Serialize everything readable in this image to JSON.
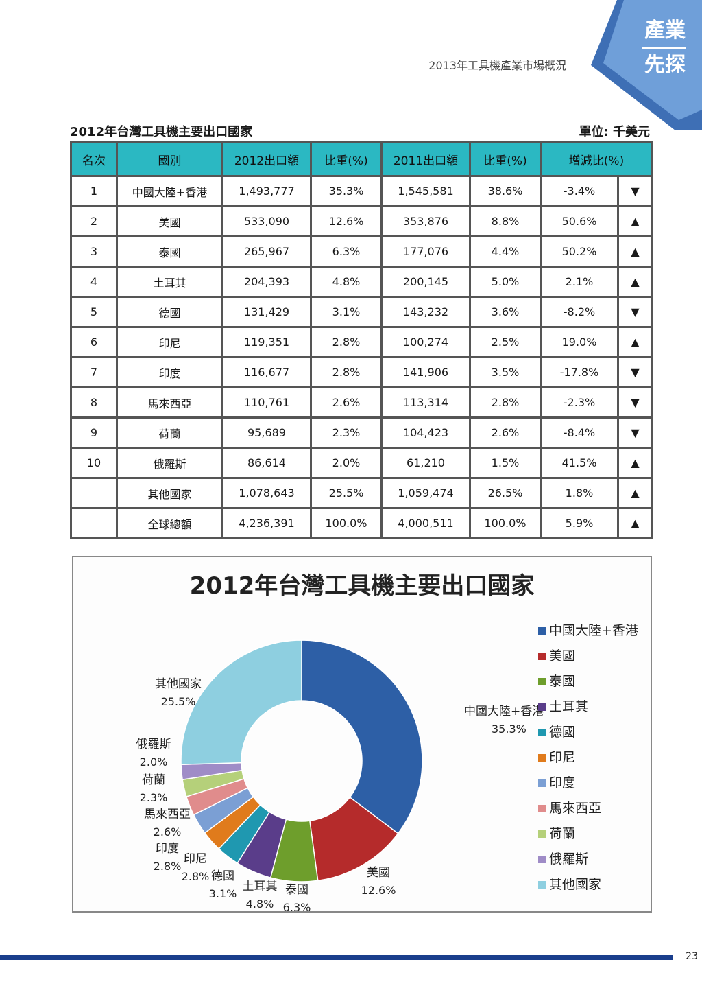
{
  "header": {
    "badge_top": "產業",
    "badge_bottom": "先探",
    "subtitle": "2013年工具機產業市場概況"
  },
  "table": {
    "title": "2012年台灣工具機主要出口國家",
    "unit": "單位: 千美元",
    "columns": [
      "名次",
      "國別",
      "2012出口額",
      "比重(%)",
      "2011出口額",
      "比重(%)",
      "增減比(%)"
    ],
    "rows": [
      {
        "rank": "1",
        "country": "中國大陸+香港",
        "v2012": "1,493,777",
        "s2012": "35.3%",
        "v2011": "1,545,581",
        "s2011": "38.6%",
        "change": "-3.4%",
        "trend": "▼"
      },
      {
        "rank": "2",
        "country": "美國",
        "v2012": "533,090",
        "s2012": "12.6%",
        "v2011": "353,876",
        "s2011": "8.8%",
        "change": "50.6%",
        "trend": "▲"
      },
      {
        "rank": "3",
        "country": "泰國",
        "v2012": "265,967",
        "s2012": "6.3%",
        "v2011": "177,076",
        "s2011": "4.4%",
        "change": "50.2%",
        "trend": "▲"
      },
      {
        "rank": "4",
        "country": "土耳其",
        "v2012": "204,393",
        "s2012": "4.8%",
        "v2011": "200,145",
        "s2011": "5.0%",
        "change": "2.1%",
        "trend": "▲"
      },
      {
        "rank": "5",
        "country": "德國",
        "v2012": "131,429",
        "s2012": "3.1%",
        "v2011": "143,232",
        "s2011": "3.6%",
        "change": "-8.2%",
        "trend": "▼"
      },
      {
        "rank": "6",
        "country": "印尼",
        "v2012": "119,351",
        "s2012": "2.8%",
        "v2011": "100,274",
        "s2011": "2.5%",
        "change": "19.0%",
        "trend": "▲"
      },
      {
        "rank": "7",
        "country": "印度",
        "v2012": "116,677",
        "s2012": "2.8%",
        "v2011": "141,906",
        "s2011": "3.5%",
        "change": "-17.8%",
        "trend": "▼"
      },
      {
        "rank": "8",
        "country": "馬來西亞",
        "v2012": "110,761",
        "s2012": "2.6%",
        "v2011": "113,314",
        "s2011": "2.8%",
        "change": "-2.3%",
        "trend": "▼"
      },
      {
        "rank": "9",
        "country": "荷蘭",
        "v2012": "95,689",
        "s2012": "2.3%",
        "v2011": "104,423",
        "s2011": "2.6%",
        "change": "-8.4%",
        "trend": "▼"
      },
      {
        "rank": "10",
        "country": "俄羅斯",
        "v2012": "86,614",
        "s2012": "2.0%",
        "v2011": "61,210",
        "s2011": "1.5%",
        "change": "41.5%",
        "trend": "▲"
      },
      {
        "rank": "",
        "country": "其他國家",
        "v2012": "1,078,643",
        "s2012": "25.5%",
        "v2011": "1,059,474",
        "s2011": "26.5%",
        "change": "1.8%",
        "trend": "▲"
      },
      {
        "rank": "",
        "country": "全球總額",
        "v2012": "4,236,391",
        "s2012": "100.0%",
        "v2011": "4,000,511",
        "s2011": "100.0%",
        "change": "5.9%",
        "trend": "▲"
      }
    ]
  },
  "chart_data": {
    "type": "pie",
    "variant": "doughnut",
    "title": "2012年台灣工具機主要出口國家",
    "legend_position": "right",
    "categories": [
      "中國大陸+香港",
      "美國",
      "泰國",
      "土耳其",
      "德國",
      "印尼",
      "印度",
      "馬來西亞",
      "荷蘭",
      "俄羅斯",
      "其他國家"
    ],
    "values": [
      35.3,
      12.6,
      6.3,
      4.8,
      3.1,
      2.8,
      2.8,
      2.6,
      2.3,
      2.0,
      25.5
    ],
    "labels": [
      "35.3%",
      "12.6%",
      "6.3%",
      "4.8%",
      "3.1%",
      "2.8%",
      "2.8%",
      "2.6%",
      "2.3%",
      "2.0%",
      "25.5%"
    ],
    "colors": [
      "#2d5fa6",
      "#b52b2b",
      "#6e9e2c",
      "#5a3d8a",
      "#1f98b0",
      "#e07b1c",
      "#7b9fd4",
      "#e08c8c",
      "#b5d07a",
      "#9f8cc7",
      "#8ecfe0"
    ]
  },
  "footer": {
    "page": "23"
  }
}
